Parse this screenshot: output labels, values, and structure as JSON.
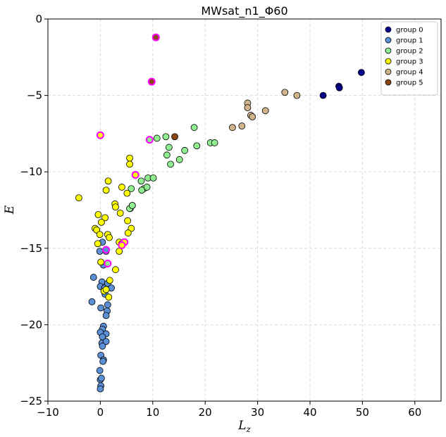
{
  "chart_data": {
    "type": "scatter",
    "title": "MWsat_n1_Φ60",
    "xlabel": "L",
    "xlabel_sub": "z",
    "ylabel": "E",
    "xlim": [
      -10,
      65
    ],
    "ylim": [
      -25,
      0
    ],
    "xticks": [
      -10,
      0,
      10,
      20,
      30,
      40,
      50,
      60
    ],
    "yticks": [
      0,
      -5,
      -10,
      -15,
      -20,
      -25
    ],
    "xtick_labels": [
      "−10",
      "0",
      "10",
      "20",
      "30",
      "40",
      "50",
      "60"
    ],
    "ytick_labels": [
      "0",
      "−5",
      "−10",
      "−15",
      "−20",
      "−25"
    ],
    "grid": true,
    "legend_position": "top-right",
    "highlight_color": "#ff00ff",
    "series": [
      {
        "name": "group 0",
        "color": "#00008b",
        "points": [
          [
            42.5,
            -5.0
          ],
          [
            45.5,
            -4.4
          ],
          [
            45.6,
            -4.5
          ],
          [
            49.8,
            -3.5
          ]
        ]
      },
      {
        "name": "group 1",
        "color": "#5b8fd6",
        "points": [
          [
            0.4,
            -14.6
          ],
          [
            -0.1,
            -15.2
          ],
          [
            1.1,
            -15.2
          ],
          [
            0.6,
            -16.1
          ],
          [
            -1.3,
            -16.9
          ],
          [
            0.3,
            -17.2
          ],
          [
            0.0,
            -17.5
          ],
          [
            0.8,
            -17.6
          ],
          [
            1.4,
            -17.3
          ],
          [
            2.1,
            -17.6
          ],
          [
            0.9,
            -18.0
          ],
          [
            -1.6,
            -18.5
          ],
          [
            1.4,
            -18.7
          ],
          [
            0.1,
            -18.9
          ],
          [
            1.3,
            -19.1
          ],
          [
            1.1,
            -19.4
          ],
          [
            0.6,
            -20.1
          ],
          [
            0.4,
            -20.3
          ],
          [
            0.0,
            -20.5
          ],
          [
            1.1,
            -20.6
          ],
          [
            0.4,
            -20.8
          ],
          [
            0.3,
            -21.2
          ],
          [
            1.1,
            -21.1
          ],
          [
            0.4,
            -21.4
          ],
          [
            0.1,
            -22.0
          ],
          [
            0.6,
            -22.3
          ],
          [
            0.5,
            -22.4
          ],
          [
            -0.1,
            -23.0
          ],
          [
            0.0,
            -23.6
          ],
          [
            0.2,
            -23.5
          ],
          [
            0.1,
            -24.0
          ],
          [
            0.0,
            -24.2
          ],
          [
            5.7,
            -12.4
          ],
          [
            6.1,
            -12.2
          ]
        ]
      },
      {
        "name": "group 2",
        "color": "#90ee90",
        "points": [
          [
            10.8,
            -7.8
          ],
          [
            12.5,
            -7.7
          ],
          [
            13.1,
            -8.4
          ],
          [
            12.7,
            -8.9
          ],
          [
            13.4,
            -9.5
          ],
          [
            15.1,
            -9.2
          ],
          [
            16.1,
            -8.6
          ],
          [
            17.9,
            -7.1
          ],
          [
            18.4,
            -8.3
          ],
          [
            21.0,
            -8.1
          ],
          [
            21.8,
            -8.1
          ],
          [
            7.8,
            -10.6
          ],
          [
            8.3,
            -11.1
          ],
          [
            8.9,
            -11.0
          ],
          [
            9.1,
            -10.4
          ],
          [
            10.1,
            -10.4
          ],
          [
            5.9,
            -11.1
          ],
          [
            7.9,
            -11.2
          ],
          [
            5.6,
            -12.4
          ],
          [
            6.1,
            -12.2
          ]
        ]
      },
      {
        "name": "group 3",
        "color": "#ffff00",
        "points": [
          [
            -4.1,
            -11.7
          ],
          [
            1.5,
            -10.6
          ],
          [
            1.1,
            -11.2
          ],
          [
            4.1,
            -11.0
          ],
          [
            5.1,
            -11.4
          ],
          [
            5.6,
            -9.1
          ],
          [
            5.6,
            -9.5
          ],
          [
            2.8,
            -12.1
          ],
          [
            2.9,
            -12.3
          ],
          [
            3.8,
            -12.7
          ],
          [
            -0.4,
            -12.8
          ],
          [
            0.9,
            -13.0
          ],
          [
            0.2,
            -13.3
          ],
          [
            5.2,
            -13.2
          ],
          [
            5.9,
            -13.7
          ],
          [
            -1.0,
            -13.7
          ],
          [
            -0.7,
            -13.8
          ],
          [
            1.4,
            -14.1
          ],
          [
            1.7,
            -14.3
          ],
          [
            5.3,
            -14.0
          ],
          [
            -0.1,
            -14.1
          ],
          [
            3.6,
            -14.6
          ],
          [
            4.1,
            -14.7
          ],
          [
            -0.5,
            -14.7
          ],
          [
            3.6,
            -15.2
          ],
          [
            0.1,
            -15.9
          ],
          [
            2.9,
            -16.4
          ],
          [
            0.7,
            -17.8
          ],
          [
            1.1,
            -17.7
          ],
          [
            1.8,
            -17.1
          ],
          [
            1.6,
            -18.2
          ]
        ]
      },
      {
        "name": "group 4",
        "color": "#d2b48c",
        "points": [
          [
            28.1,
            -5.5
          ],
          [
            28.1,
            -5.8
          ],
          [
            28.7,
            -6.3
          ],
          [
            29.0,
            -6.4
          ],
          [
            31.5,
            -6.0
          ],
          [
            35.2,
            -4.8
          ],
          [
            37.5,
            -5.0
          ],
          [
            27.0,
            -7.0
          ],
          [
            25.2,
            -7.1
          ]
        ]
      },
      {
        "name": "group 5",
        "color": "#8b4513",
        "points": [
          [
            14.2,
            -7.7
          ]
        ]
      }
    ],
    "highlighted_points": [
      {
        "x": 10.6,
        "y": -1.2,
        "fill": "#8b4513"
      },
      {
        "x": 9.8,
        "y": -4.1,
        "fill": "#8b4513"
      },
      {
        "x": 0.0,
        "y": -7.6,
        "fill": "#ffff00"
      },
      {
        "x": 9.4,
        "y": -7.9,
        "fill": "#90ee90"
      },
      {
        "x": 6.7,
        "y": -10.2,
        "fill": "#ffff00"
      },
      {
        "x": 4.6,
        "y": -14.6,
        "fill": "#ffff00"
      },
      {
        "x": 4.1,
        "y": -14.8,
        "fill": "#ffff00"
      },
      {
        "x": 1.1,
        "y": -15.1,
        "fill": "#5b8fd6"
      },
      {
        "x": 1.4,
        "y": -16.0,
        "fill": "#90ee90"
      }
    ]
  }
}
